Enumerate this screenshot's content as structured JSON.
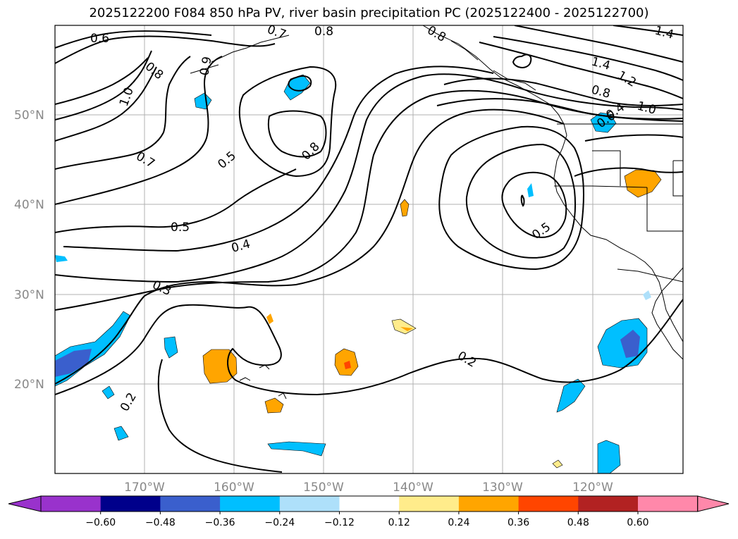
{
  "title": "2025122200 F084 850 hPa PV, river basin precipitation PC (2025122400 - 2025122700)",
  "lat_labels": [
    "50°N",
    "40°N",
    "30°N",
    "20°N"
  ],
  "lon_labels": [
    "170°W",
    "160°W",
    "150°W",
    "140°W",
    "130°W",
    "120°W"
  ],
  "colorbar": {
    "ticks": [
      "−0.60",
      "−0.48",
      "−0.36",
      "−0.24",
      "−0.12",
      "0.12",
      "0.24",
      "0.36",
      "0.48",
      "0.60"
    ],
    "colors": [
      "#9932cc",
      "#00008b",
      "#3a5fcd",
      "#00bfff",
      "#aee0fa",
      "#ffffff",
      "#ffec8b",
      "#ffa500",
      "#ff4500",
      "#b22222",
      "#ff88aa"
    ]
  },
  "contour_labels": [
    "0.6",
    "0.8",
    "1.0",
    "0.7",
    "0.5",
    "0.5",
    "0.4",
    "0.3",
    "0.2",
    "0.2",
    "0.8",
    "0.5",
    "0.8",
    "0.9",
    "1.4",
    "1.2",
    "1.0",
    "0.8",
    "0.6",
    "1.4",
    "0.4",
    "0.7",
    "0.8"
  ]
}
